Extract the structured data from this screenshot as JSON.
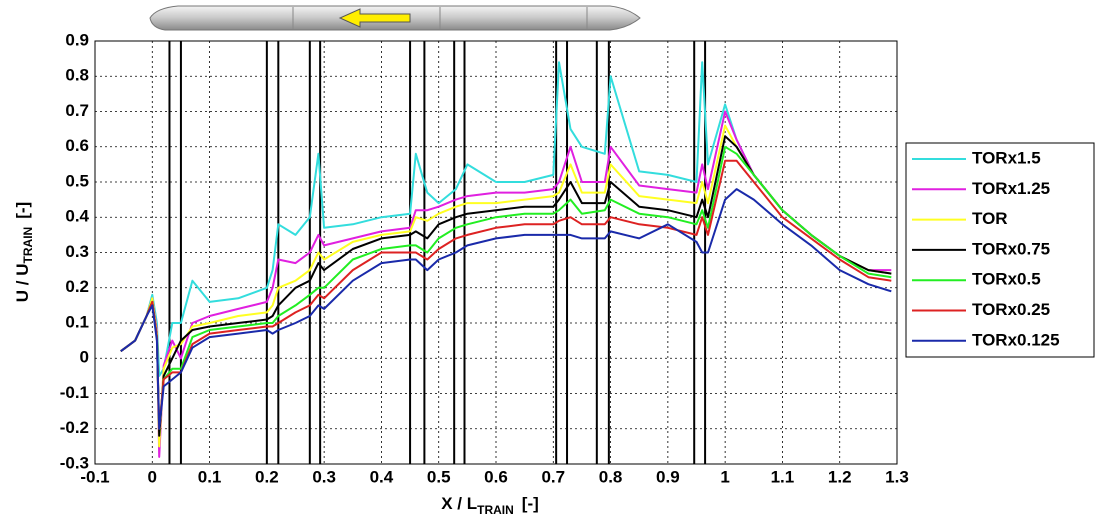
{
  "chart_data": {
    "type": "line",
    "y_label": "U / U",
    "y_label_sub": "TRAIN",
    "y_label_unit": "[-]",
    "x_label": "X / L",
    "x_label_sub": "TRAIN",
    "x_label_unit": "[-]",
    "xlim": [
      -0.1,
      1.3
    ],
    "ylim": [
      -0.3,
      0.9
    ],
    "xticks": [
      -0.1,
      0,
      0.1,
      0.2,
      0.3,
      0.4,
      0.5,
      0.6,
      0.7,
      0.8,
      0.9,
      1,
      1.1,
      1.2,
      1.3
    ],
    "yticks": [
      -0.3,
      -0.2,
      -0.1,
      0,
      0.1,
      0.2,
      0.3,
      0.4,
      0.5,
      0.6,
      0.7,
      0.8,
      0.9
    ],
    "grid": true,
    "legend": "right",
    "vlines": [
      0.03,
      0.05,
      0.2,
      0.22,
      0.275,
      0.293,
      0.45,
      0.475,
      0.527,
      0.545,
      0.705,
      0.724,
      0.776,
      0.797,
      0.946,
      0.965
    ],
    "x": [
      -0.055,
      -0.03,
      -0.01,
      0,
      0.008,
      0.012,
      0.02,
      0.035,
      0.05,
      0.07,
      0.1,
      0.15,
      0.2,
      0.21,
      0.22,
      0.25,
      0.275,
      0.29,
      0.3,
      0.35,
      0.4,
      0.45,
      0.46,
      0.48,
      0.5,
      0.53,
      0.55,
      0.6,
      0.65,
      0.7,
      0.71,
      0.73,
      0.75,
      0.79,
      0.8,
      0.85,
      0.9,
      0.95,
      0.96,
      0.97,
      1,
      1.02,
      1.05,
      1.1,
      1.15,
      1.2,
      1.25,
      1.29
    ],
    "series": [
      {
        "name": "TORx1.5",
        "color": "#33dddd",
        "values": [
          0.02,
          0.05,
          0.12,
          0.18,
          0.1,
          -0.05,
          -0.03,
          0.1,
          0.1,
          0.22,
          0.16,
          0.17,
          0.2,
          0.25,
          0.38,
          0.35,
          0.4,
          0.58,
          0.37,
          0.38,
          0.4,
          0.41,
          0.58,
          0.47,
          0.44,
          0.48,
          0.55,
          0.5,
          0.5,
          0.52,
          0.84,
          0.65,
          0.6,
          0.58,
          0.8,
          0.53,
          0.52,
          0.5,
          0.84,
          0.55,
          0.72,
          0.62,
          0.52,
          0.42,
          0.35,
          0.29,
          0.25,
          0.24
        ]
      },
      {
        "name": "TORx1.25",
        "color": "#e020e0",
        "values": [
          0.02,
          0.05,
          0.12,
          0.17,
          0.08,
          -0.28,
          -0.02,
          0.05,
          0.0,
          0.1,
          0.12,
          0.14,
          0.16,
          0.2,
          0.28,
          0.27,
          0.3,
          0.35,
          0.32,
          0.34,
          0.36,
          0.37,
          0.42,
          0.42,
          0.43,
          0.45,
          0.46,
          0.47,
          0.47,
          0.48,
          0.5,
          0.6,
          0.5,
          0.5,
          0.6,
          0.49,
          0.48,
          0.47,
          0.55,
          0.48,
          0.7,
          0.62,
          0.52,
          0.42,
          0.35,
          0.29,
          0.25,
          0.25
        ]
      },
      {
        "name": "TOR",
        "color": "#ffff22",
        "values": [
          0.02,
          0.05,
          0.12,
          0.17,
          0.07,
          -0.25,
          -0.03,
          0.03,
          0.04,
          0.09,
          0.1,
          0.12,
          0.13,
          0.15,
          0.2,
          0.22,
          0.25,
          0.3,
          0.28,
          0.33,
          0.35,
          0.36,
          0.4,
          0.39,
          0.41,
          0.43,
          0.44,
          0.44,
          0.45,
          0.46,
          0.47,
          0.55,
          0.47,
          0.47,
          0.55,
          0.46,
          0.45,
          0.44,
          0.5,
          0.44,
          0.66,
          0.6,
          0.52,
          0.42,
          0.35,
          0.29,
          0.25,
          0.24
        ]
      },
      {
        "name": "TORx0.75",
        "color": "#000000",
        "values": [
          0.02,
          0.05,
          0.12,
          0.16,
          0.06,
          -0.22,
          -0.05,
          0.0,
          0.05,
          0.08,
          0.09,
          0.1,
          0.11,
          0.12,
          0.15,
          0.2,
          0.22,
          0.27,
          0.25,
          0.31,
          0.34,
          0.35,
          0.36,
          0.34,
          0.38,
          0.4,
          0.41,
          0.42,
          0.43,
          0.43,
          0.45,
          0.5,
          0.44,
          0.44,
          0.5,
          0.43,
          0.42,
          0.4,
          0.45,
          0.4,
          0.63,
          0.6,
          0.52,
          0.42,
          0.35,
          0.29,
          0.25,
          0.24
        ]
      },
      {
        "name": "TORx0.5",
        "color": "#22ee22",
        "values": [
          0.02,
          0.05,
          0.12,
          0.16,
          0.06,
          -0.2,
          -0.06,
          -0.03,
          -0.03,
          0.06,
          0.08,
          0.09,
          0.1,
          0.1,
          0.12,
          0.15,
          0.18,
          0.2,
          0.2,
          0.28,
          0.31,
          0.32,
          0.32,
          0.3,
          0.34,
          0.37,
          0.38,
          0.4,
          0.41,
          0.41,
          0.42,
          0.45,
          0.41,
          0.42,
          0.45,
          0.41,
          0.4,
          0.38,
          0.42,
          0.37,
          0.6,
          0.58,
          0.52,
          0.42,
          0.35,
          0.29,
          0.24,
          0.23
        ]
      },
      {
        "name": "TORx0.25",
        "color": "#dd2222",
        "values": [
          0.02,
          0.05,
          0.12,
          0.16,
          0.06,
          -0.2,
          -0.06,
          -0.04,
          -0.04,
          0.04,
          0.07,
          0.08,
          0.09,
          0.09,
          0.1,
          0.13,
          0.15,
          0.18,
          0.17,
          0.25,
          0.3,
          0.3,
          0.3,
          0.28,
          0.31,
          0.34,
          0.35,
          0.37,
          0.38,
          0.38,
          0.39,
          0.4,
          0.38,
          0.38,
          0.4,
          0.38,
          0.37,
          0.35,
          0.4,
          0.35,
          0.56,
          0.56,
          0.5,
          0.4,
          0.34,
          0.28,
          0.23,
          0.22
        ]
      },
      {
        "name": "TORx0.125",
        "color": "#1a2aaa",
        "values": [
          0.02,
          0.05,
          0.12,
          0.15,
          0.05,
          -0.2,
          -0.08,
          -0.06,
          -0.04,
          0.03,
          0.06,
          0.07,
          0.08,
          0.07,
          0.08,
          0.1,
          0.12,
          0.15,
          0.14,
          0.22,
          0.27,
          0.28,
          0.28,
          0.25,
          0.28,
          0.3,
          0.32,
          0.34,
          0.35,
          0.35,
          0.35,
          0.35,
          0.34,
          0.34,
          0.36,
          0.34,
          0.38,
          0.33,
          0.3,
          0.3,
          0.45,
          0.48,
          0.45,
          0.38,
          0.32,
          0.25,
          0.21,
          0.19
        ]
      }
    ]
  }
}
